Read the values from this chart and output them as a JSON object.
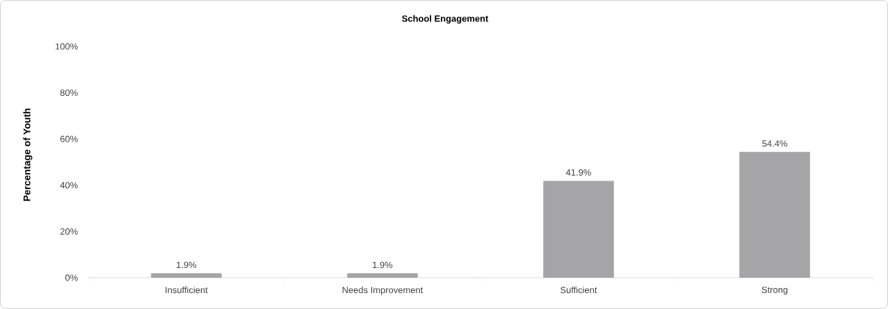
{
  "chart_data": {
    "type": "bar",
    "title": "School Engagement",
    "ylabel": "Percentage of Youth",
    "categories": [
      "Insufficient",
      "Needs Improvement",
      "Sufficient",
      "Strong"
    ],
    "values": [
      1.9,
      1.9,
      41.9,
      54.4
    ],
    "value_labels": [
      "1.9%",
      "1.9%",
      "41.9%",
      "54.4%"
    ],
    "color": "#a5a5a8",
    "ylim": [
      0,
      100
    ],
    "yticks": [
      {
        "value": 0,
        "label": "0%"
      },
      {
        "value": 20,
        "label": "20%"
      },
      {
        "value": 40,
        "label": "40%"
      },
      {
        "value": 60,
        "label": "60%"
      },
      {
        "value": 80,
        "label": "80%"
      },
      {
        "value": 100,
        "label": "100%"
      }
    ],
    "grid": false
  }
}
